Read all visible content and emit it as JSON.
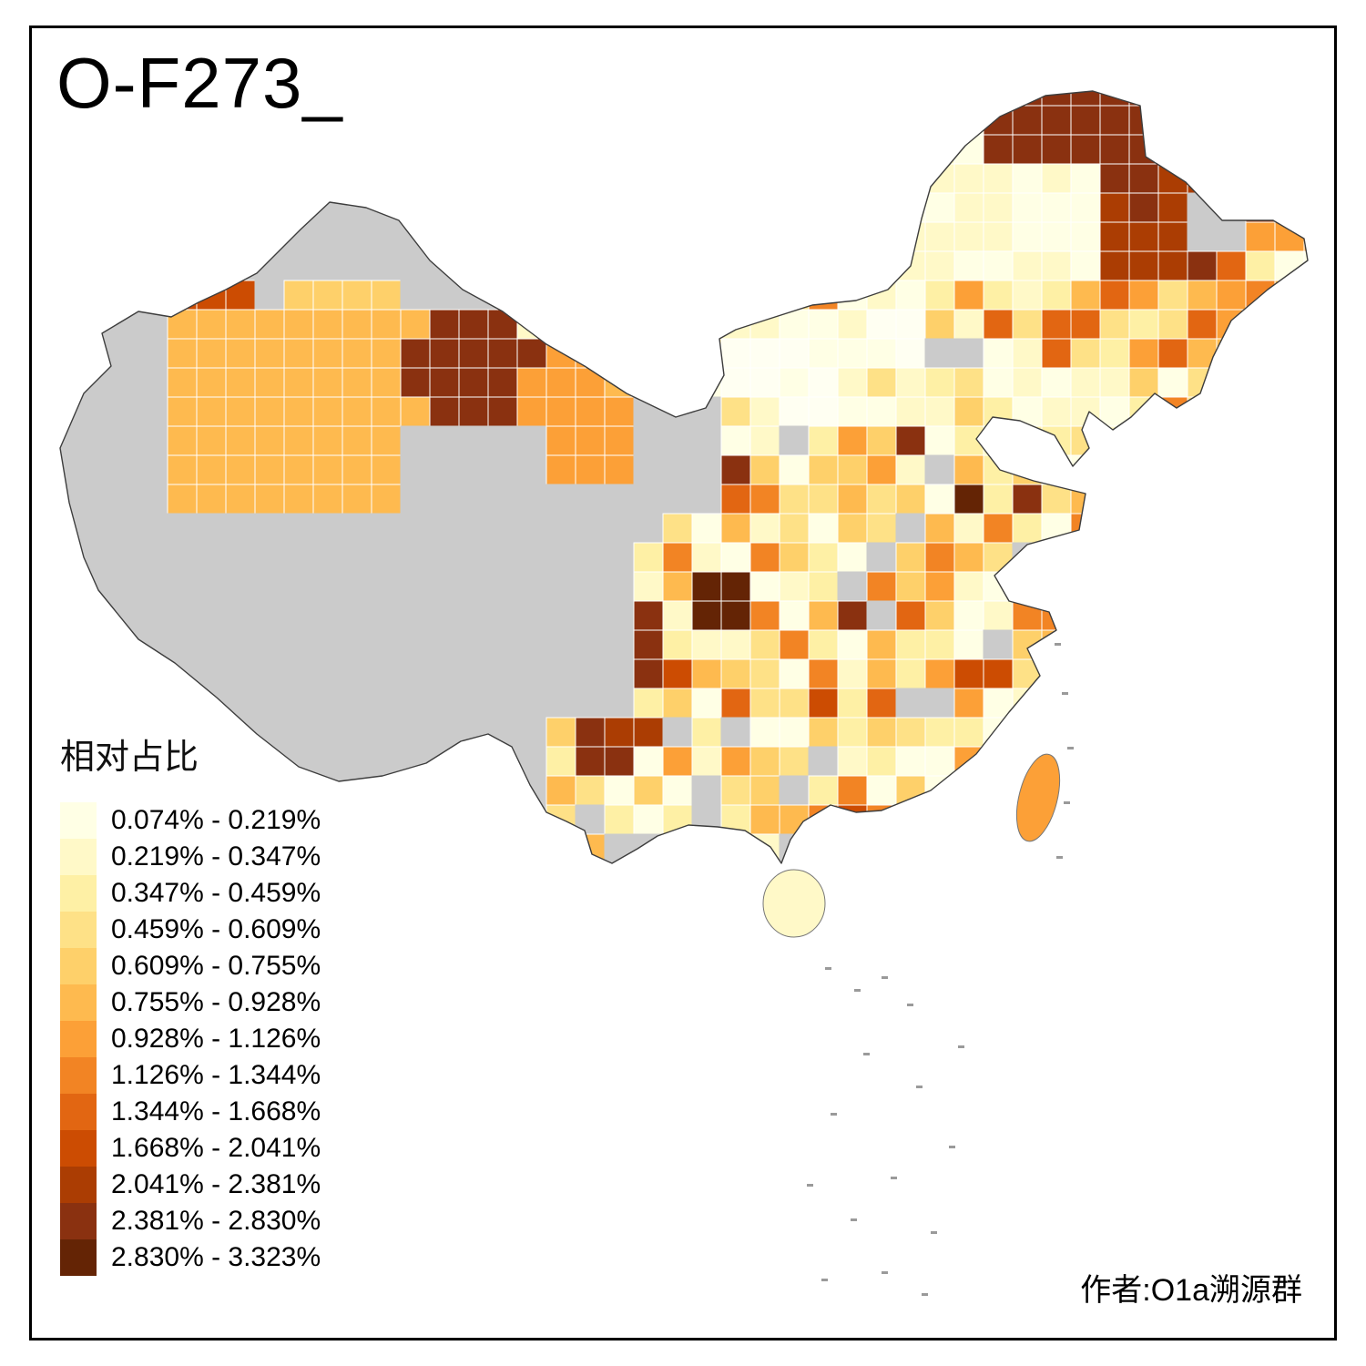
{
  "title": "O-F273_",
  "legend": {
    "title": "相对占比",
    "na_color": "#CBCBCB",
    "bins": [
      {
        "label": "0.074% - 0.219%",
        "color": "#FFFFE5"
      },
      {
        "label": "0.219% - 0.347%",
        "color": "#FFF9C8"
      },
      {
        "label": "0.347% - 0.459%",
        "color": "#FEF0A5"
      },
      {
        "label": "0.459% - 0.609%",
        "color": "#FEE187"
      },
      {
        "label": "0.609% - 0.755%",
        "color": "#FED06A"
      },
      {
        "label": "0.755% - 0.928%",
        "color": "#FEBA4F"
      },
      {
        "label": "0.928% - 1.126%",
        "color": "#FCA037"
      },
      {
        "label": "1.126% - 1.344%",
        "color": "#F28424"
      },
      {
        "label": "1.344% - 1.668%",
        "color": "#E26612"
      },
      {
        "label": "1.668% - 2.041%",
        "color": "#CC4C02"
      },
      {
        "label": "2.041% - 2.381%",
        "color": "#AB3D03"
      },
      {
        "label": "2.381% - 2.830%",
        "color": "#8A3110"
      },
      {
        "label": "2.830% - 3.323%",
        "color": "#642405"
      }
    ]
  },
  "author": "作者:O1a溯源群"
}
